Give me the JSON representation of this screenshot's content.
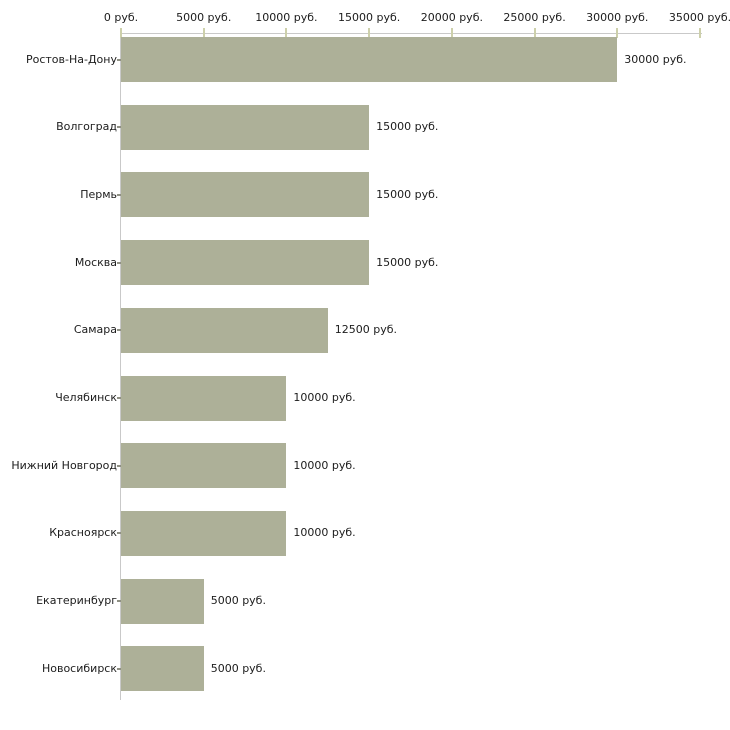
{
  "chart_data": {
    "type": "bar",
    "orientation": "horizontal",
    "title": "",
    "xlabel": "",
    "ylabel": "",
    "categories": [
      "Ростов-На-Дону",
      "Волгоград",
      "Пермь",
      "Москва",
      "Самара",
      "Челябинск",
      "Нижний Новгород",
      "Красноярск",
      "Екатеринбург",
      "Новосибирск"
    ],
    "values": [
      30000,
      15000,
      15000,
      15000,
      12500,
      10000,
      10000,
      10000,
      5000,
      5000
    ],
    "value_labels": [
      "30000 руб.",
      "15000 руб.",
      "15000 руб.",
      "15000 руб.",
      "12500 руб.",
      "10000 руб.",
      "10000 руб.",
      "10000 руб.",
      "5000 руб.",
      "5000 руб."
    ],
    "x_ticks": [
      0,
      5000,
      10000,
      15000,
      20000,
      25000,
      30000,
      35000
    ],
    "x_tick_labels": [
      "0 руб.",
      "5000 руб.",
      "10000 руб.",
      "15000 руб.",
      "20000 руб.",
      "25000 руб.",
      "30000 руб.",
      "35000 руб."
    ],
    "xlim": [
      0,
      35000
    ],
    "grid": false,
    "legend": null,
    "colors": {
      "bar": "#adb098",
      "axis_line": "#c9c9c9",
      "x_tick_mark": "#cdd0ab",
      "y_tick_mark": "#8f9084",
      "text": "#1c1c1c",
      "background": "#ffffff"
    }
  }
}
